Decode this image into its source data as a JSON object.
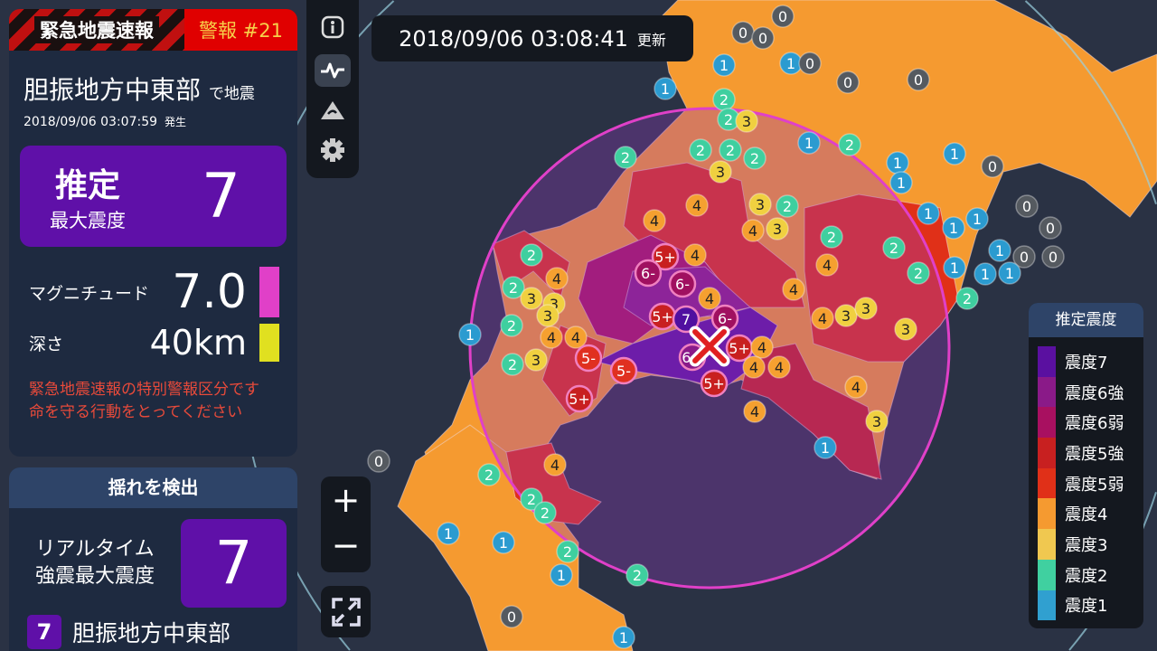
{
  "alert": {
    "title": "緊急地震速報",
    "level": "警報 #21",
    "region": "胆振地方中東部",
    "region_suffix": "で地震",
    "occurred": "2018/09/06 03:07:59",
    "occurred_suffix": "発生",
    "max_label_1": "推定",
    "max_label_2": "最大震度",
    "max_value": "7",
    "magnitude_label": "マグニチュード",
    "magnitude": "7.0",
    "magnitude_color": "#e040c8",
    "depth_label": "深さ",
    "depth": "40km",
    "depth_color": "#e0e020",
    "warning_1": "緊急地震速報の特別警報区分です",
    "warning_2": "命を守る行動をとってください"
  },
  "detect": {
    "title": "揺れを検出",
    "label_1": "リアルタイム",
    "label_2": "強震最大震度",
    "value": "7",
    "area_value": "7",
    "area_name": "胆振地方中東部"
  },
  "toolbar": {
    "icons": [
      "info-icon",
      "waveform-icon",
      "tsunami-icon",
      "gear-icon"
    ],
    "active": "waveform-icon"
  },
  "update": {
    "time": "2018/09/06 03:08:41",
    "suffix": "更新"
  },
  "zoom": {
    "plus": "+",
    "minus": "−"
  },
  "legend": {
    "title": "推定震度",
    "items": [
      {
        "label": "震度7",
        "color": "#5a10a0"
      },
      {
        "label": "震度6強",
        "color": "#8a1a88"
      },
      {
        "label": "震度6弱",
        "color": "#a81060"
      },
      {
        "label": "震度5強",
        "color": "#c82020"
      },
      {
        "label": "震度5弱",
        "color": "#e03018"
      },
      {
        "label": "震度4",
        "color": "#f59a30"
      },
      {
        "label": "震度3",
        "color": "#f0c850"
      },
      {
        "label": "震度2",
        "color": "#40d0a0"
      },
      {
        "label": "震度1",
        "color": "#30a0d0"
      }
    ]
  },
  "stations": [
    "0",
    "0",
    "0",
    "1",
    "1",
    "0",
    "0",
    "0",
    "1",
    "2",
    "2",
    "3",
    "2",
    "2",
    "2",
    "1",
    "2",
    "2",
    "3",
    "1",
    "1",
    "0",
    "1",
    "1",
    "1",
    "1",
    "0",
    "0",
    "1",
    "0",
    "0",
    "1",
    "1",
    "1",
    "2",
    "4",
    "4",
    "3",
    "2",
    "4",
    "3",
    "2",
    "2",
    "2",
    "4",
    "4",
    "2",
    "4",
    "2",
    "3",
    "3",
    "3",
    "5+",
    "4",
    "6-",
    "6-",
    "4",
    "5+",
    "7",
    "6-",
    "2",
    "1",
    "4",
    "4",
    "4",
    "3",
    "3",
    "3",
    "5+",
    "4",
    "4",
    "4",
    "2",
    "3",
    "5-",
    "5-",
    "6+",
    "5+",
    "5+",
    "4",
    "4",
    "3",
    "0",
    "1",
    "4",
    "2",
    "2",
    "2",
    "1",
    "1",
    "2",
    "1",
    "2",
    "0",
    "1"
  ]
}
